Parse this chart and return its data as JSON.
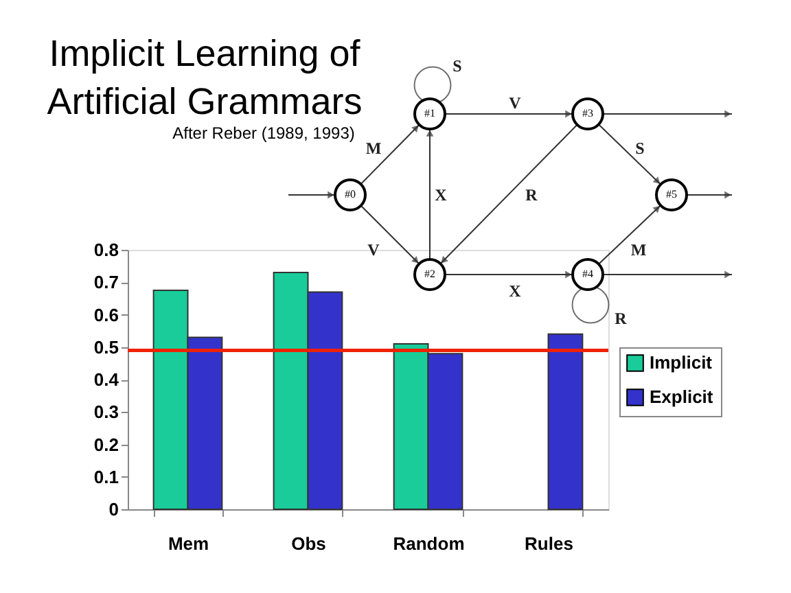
{
  "chart_data": {
    "type": "bar",
    "title": "Implicit Learning of\nArtificial Grammars",
    "subtitle": "After Reber (1989, 1993)",
    "categories": [
      "Mem",
      "Obs",
      "Random",
      "Rules"
    ],
    "series": [
      {
        "name": "Implicit",
        "color": "#19cc99",
        "values": [
          0.675,
          0.73,
          0.51,
          null
        ]
      },
      {
        "name": "Explicit",
        "color": "#3333cc",
        "values": [
          0.53,
          0.67,
          0.48,
          0.54
        ]
      }
    ],
    "ylim": [
      0,
      0.8
    ],
    "yticks": [
      {
        "value": 0,
        "label": "0"
      },
      0.1,
      0.2,
      0.3,
      0.4,
      0.5,
      0.6,
      0.7,
      0.8
    ],
    "ref_lines": [
      {
        "axis": "y",
        "value": 0.49,
        "color": "#ee2200"
      }
    ],
    "annotations": [
      "#0",
      "#1",
      "#2",
      "#3",
      "#4",
      "#5",
      "S",
      "V",
      "M",
      "V",
      "X",
      "R",
      "S",
      "M",
      "X",
      "R"
    ],
    "grid": false,
    "legend": "right"
  }
}
